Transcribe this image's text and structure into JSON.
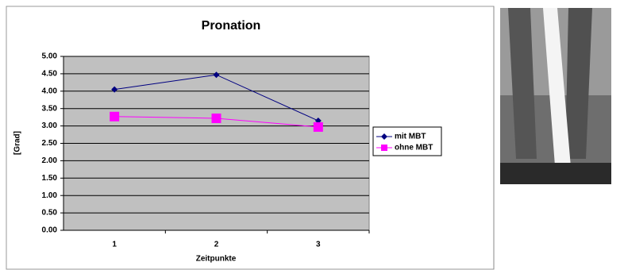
{
  "chart_data": {
    "type": "line",
    "title": "Pronation",
    "x_label": "Zeitpunkte",
    "y_label": "[Grad]",
    "categories": [
      "1",
      "2",
      "3"
    ],
    "series": [
      {
        "name": "mit MBT",
        "color": "#000080",
        "marker": "diamond",
        "values": [
          4.05,
          4.47,
          3.15
        ]
      },
      {
        "name": "ohne MBT",
        "color": "#ff00ff",
        "marker": "square",
        "values": [
          3.27,
          3.22,
          2.97
        ]
      }
    ],
    "ylim": [
      0,
      5
    ],
    "yticks": [
      {
        "value": 0,
        "label": "0.00"
      },
      {
        "value": 0.5,
        "label": "0.50"
      },
      {
        "value": 1,
        "label": "1.00"
      },
      {
        "value": 1.5,
        "label": "1.50"
      },
      {
        "value": 2,
        "label": "2.00"
      },
      {
        "value": 2.5,
        "label": "2.50"
      },
      {
        "value": 3,
        "label": "3.00"
      },
      {
        "value": 3.5,
        "label": "3.50"
      },
      {
        "value": 4,
        "label": "4.00"
      },
      {
        "value": 4.5,
        "label": "4.50"
      },
      {
        "value": 5,
        "label": "5.00"
      }
    ],
    "grid": true,
    "plot_background": "#c0c0c0"
  }
}
